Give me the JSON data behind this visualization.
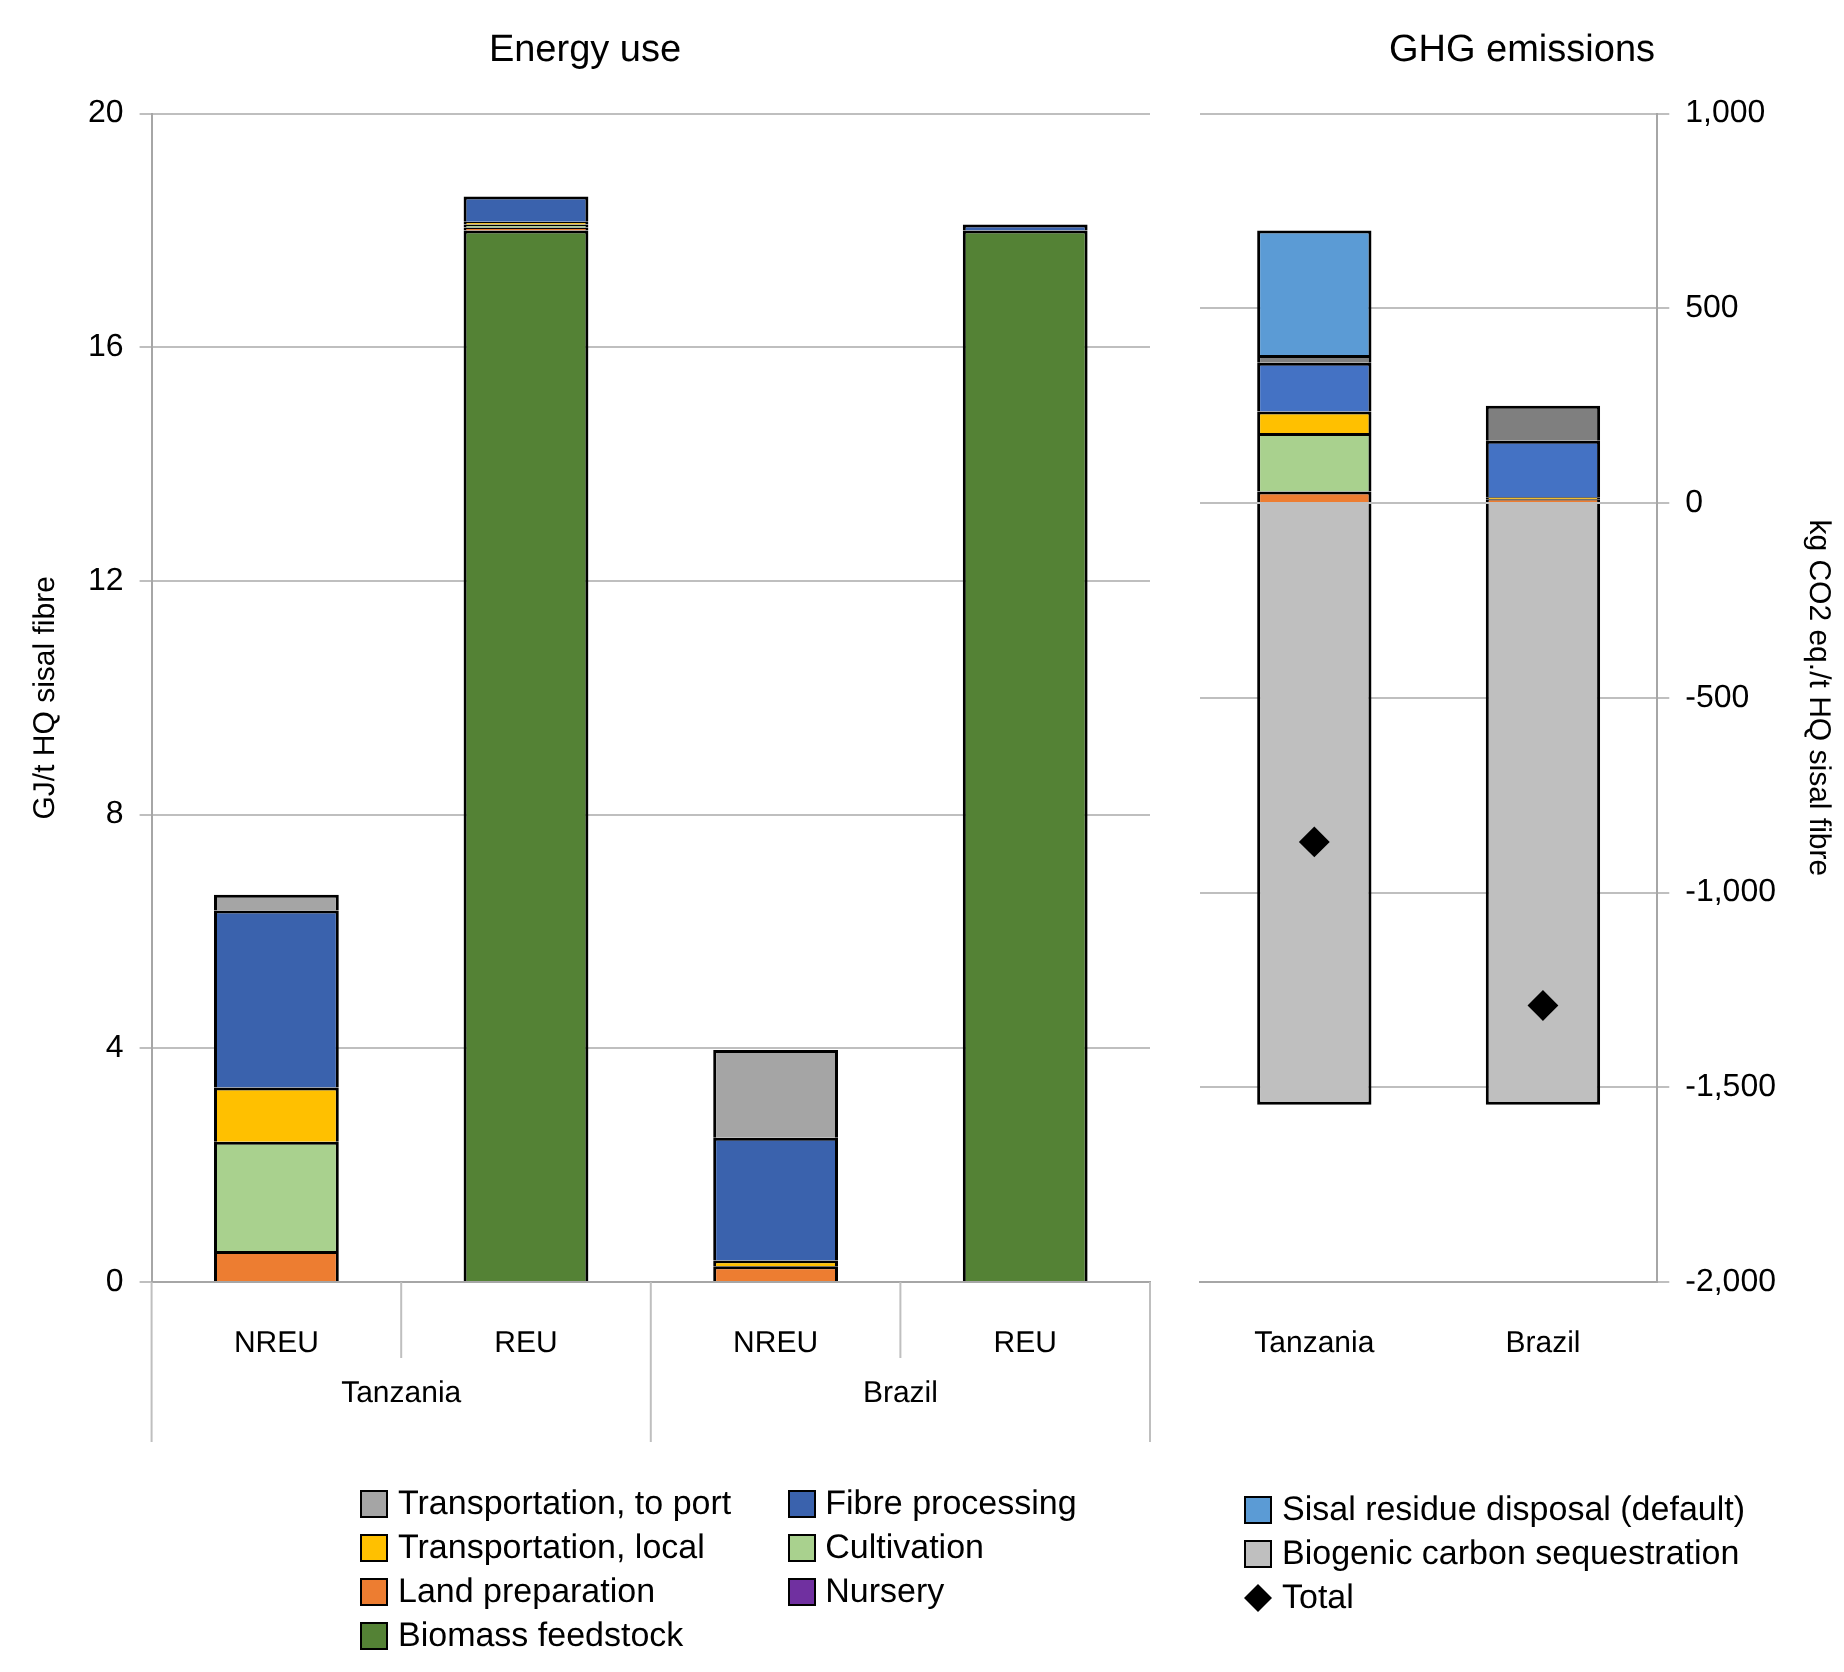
{
  "chart_data": [
    {
      "type": "bar",
      "title": "Energy use",
      "ylabel": "GJ/t HQ sisal fibre",
      "categories": [
        "NREU",
        "REU",
        "NREU",
        "REU"
      ],
      "annotations": [
        "Tanzania",
        "Brazil"
      ],
      "stacked": true,
      "ylim": [
        0,
        20
      ],
      "yticks": [
        0,
        4,
        8,
        12,
        16,
        20
      ],
      "grid": "y",
      "legend": "bottom",
      "series": [
        {
          "name": "Biomass feedstock",
          "color": "#548235",
          "values": [
            null,
            18.0,
            null,
            18.0
          ]
        },
        {
          "name": "Nursery",
          "color": "#7030a0",
          "values": [
            null,
            null,
            null,
            null
          ]
        },
        {
          "name": "Land preparation",
          "color": "#ed7d31",
          "values": [
            0.53,
            0.05,
            0.27,
            null
          ]
        },
        {
          "name": "Cultivation",
          "color": "#a9d18e",
          "values": [
            1.87,
            0.05,
            null,
            null
          ]
        },
        {
          "name": "Transportation, local",
          "color": "#ffc000",
          "values": [
            0.93,
            0.05,
            0.1,
            null
          ]
        },
        {
          "name": "Fibre processing",
          "color": "#3a62ad",
          "values": [
            3.03,
            0.43,
            2.1,
            0.1
          ]
        },
        {
          "name": "Transportation, to port",
          "color": "#a5a5a5",
          "values": [
            0.27,
            null,
            1.5,
            null
          ]
        }
      ]
    },
    {
      "type": "bar",
      "title": "GHG emissions",
      "y2label": "kg CO2 eq./t HQ sisal fibre",
      "categories": [
        "Tanzania",
        "Brazil"
      ],
      "stacked": true,
      "y2lim": [
        -2000,
        1000
      ],
      "y2ticks": [
        {
          "value": -2000,
          "label": "-2,000"
        },
        {
          "value": -1500,
          "label": "-1,500"
        },
        {
          "value": -1000,
          "label": "-1,000"
        },
        -500,
        0,
        500,
        {
          "value": 1000,
          "label": "1,000"
        }
      ],
      "grid": "y",
      "legend": "bottom",
      "series": [
        {
          "color": "#ed7d31",
          "values": [
            30,
            10
          ],
          "axis": "y2"
        },
        {
          "color": "#a9d18e",
          "values": [
            150,
            null
          ],
          "axis": "y2"
        },
        {
          "color": "#ffc000",
          "values": [
            55,
            5
          ],
          "axis": "y2"
        },
        {
          "color": "#4472c4",
          "values": [
            125,
            145
          ],
          "axis": "y2"
        },
        {
          "color": "#7f7f7f",
          "values": [
            20,
            90
          ],
          "axis": "y2"
        },
        {
          "name": "Sisal residue disposal (default)",
          "color": "#5b9bd5",
          "values": [
            320,
            null
          ],
          "axis": "y2"
        },
        {
          "name": "Biogenic carbon sequestration",
          "color": "#bfbfbf",
          "values": [
            -1545,
            -1545
          ],
          "axis": "y2"
        },
        {
          "name": "Total",
          "type": "scatter",
          "marker": "diamond",
          "color": "#000000",
          "x": [
            "Tanzania",
            "Brazil"
          ],
          "values": [
            -870,
            -1290
          ],
          "axis": "y2"
        }
      ]
    }
  ]
}
